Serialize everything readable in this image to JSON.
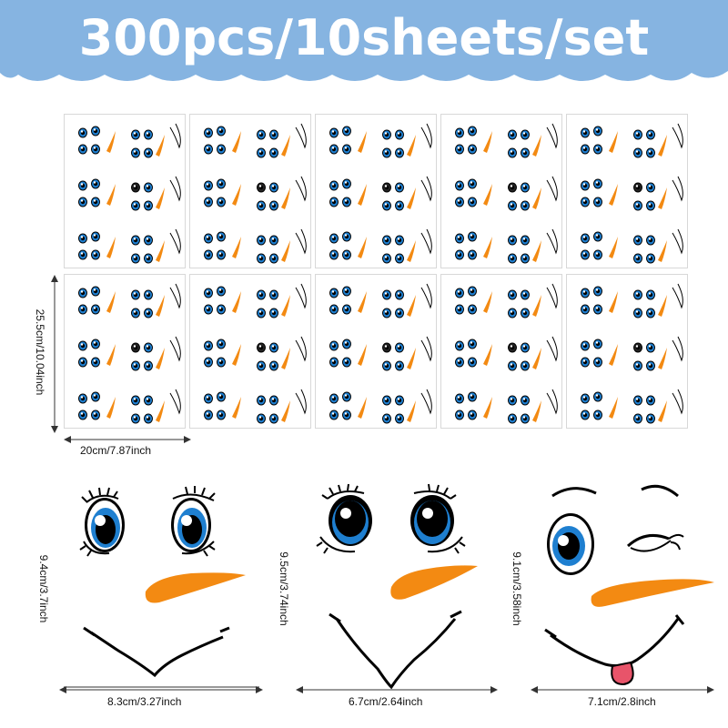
{
  "banner": {
    "title": "300pcs/10sheets/set",
    "color": "#86b4e1"
  },
  "sheet_dimensions": {
    "height": "25.5cm/10.04inch",
    "width": "20cm/7.87inch"
  },
  "sheets": {
    "count": 10,
    "columns": 5,
    "rows": 2
  },
  "faces": [
    {
      "id": "face-1",
      "height": "9.4cm/3.7inch",
      "width": "8.3cm/3.27inch"
    },
    {
      "id": "face-2",
      "height": "9.5cm/3.74inch",
      "width": "6.7cm/2.64inch"
    },
    {
      "id": "face-3",
      "height": "9.1cm/3.58inch",
      "width": "7.1cm/2.8inch"
    }
  ],
  "colors": {
    "eye_blue": "#1e7fd0",
    "nose_orange": "#f38a12",
    "tongue": "#e8546a"
  }
}
